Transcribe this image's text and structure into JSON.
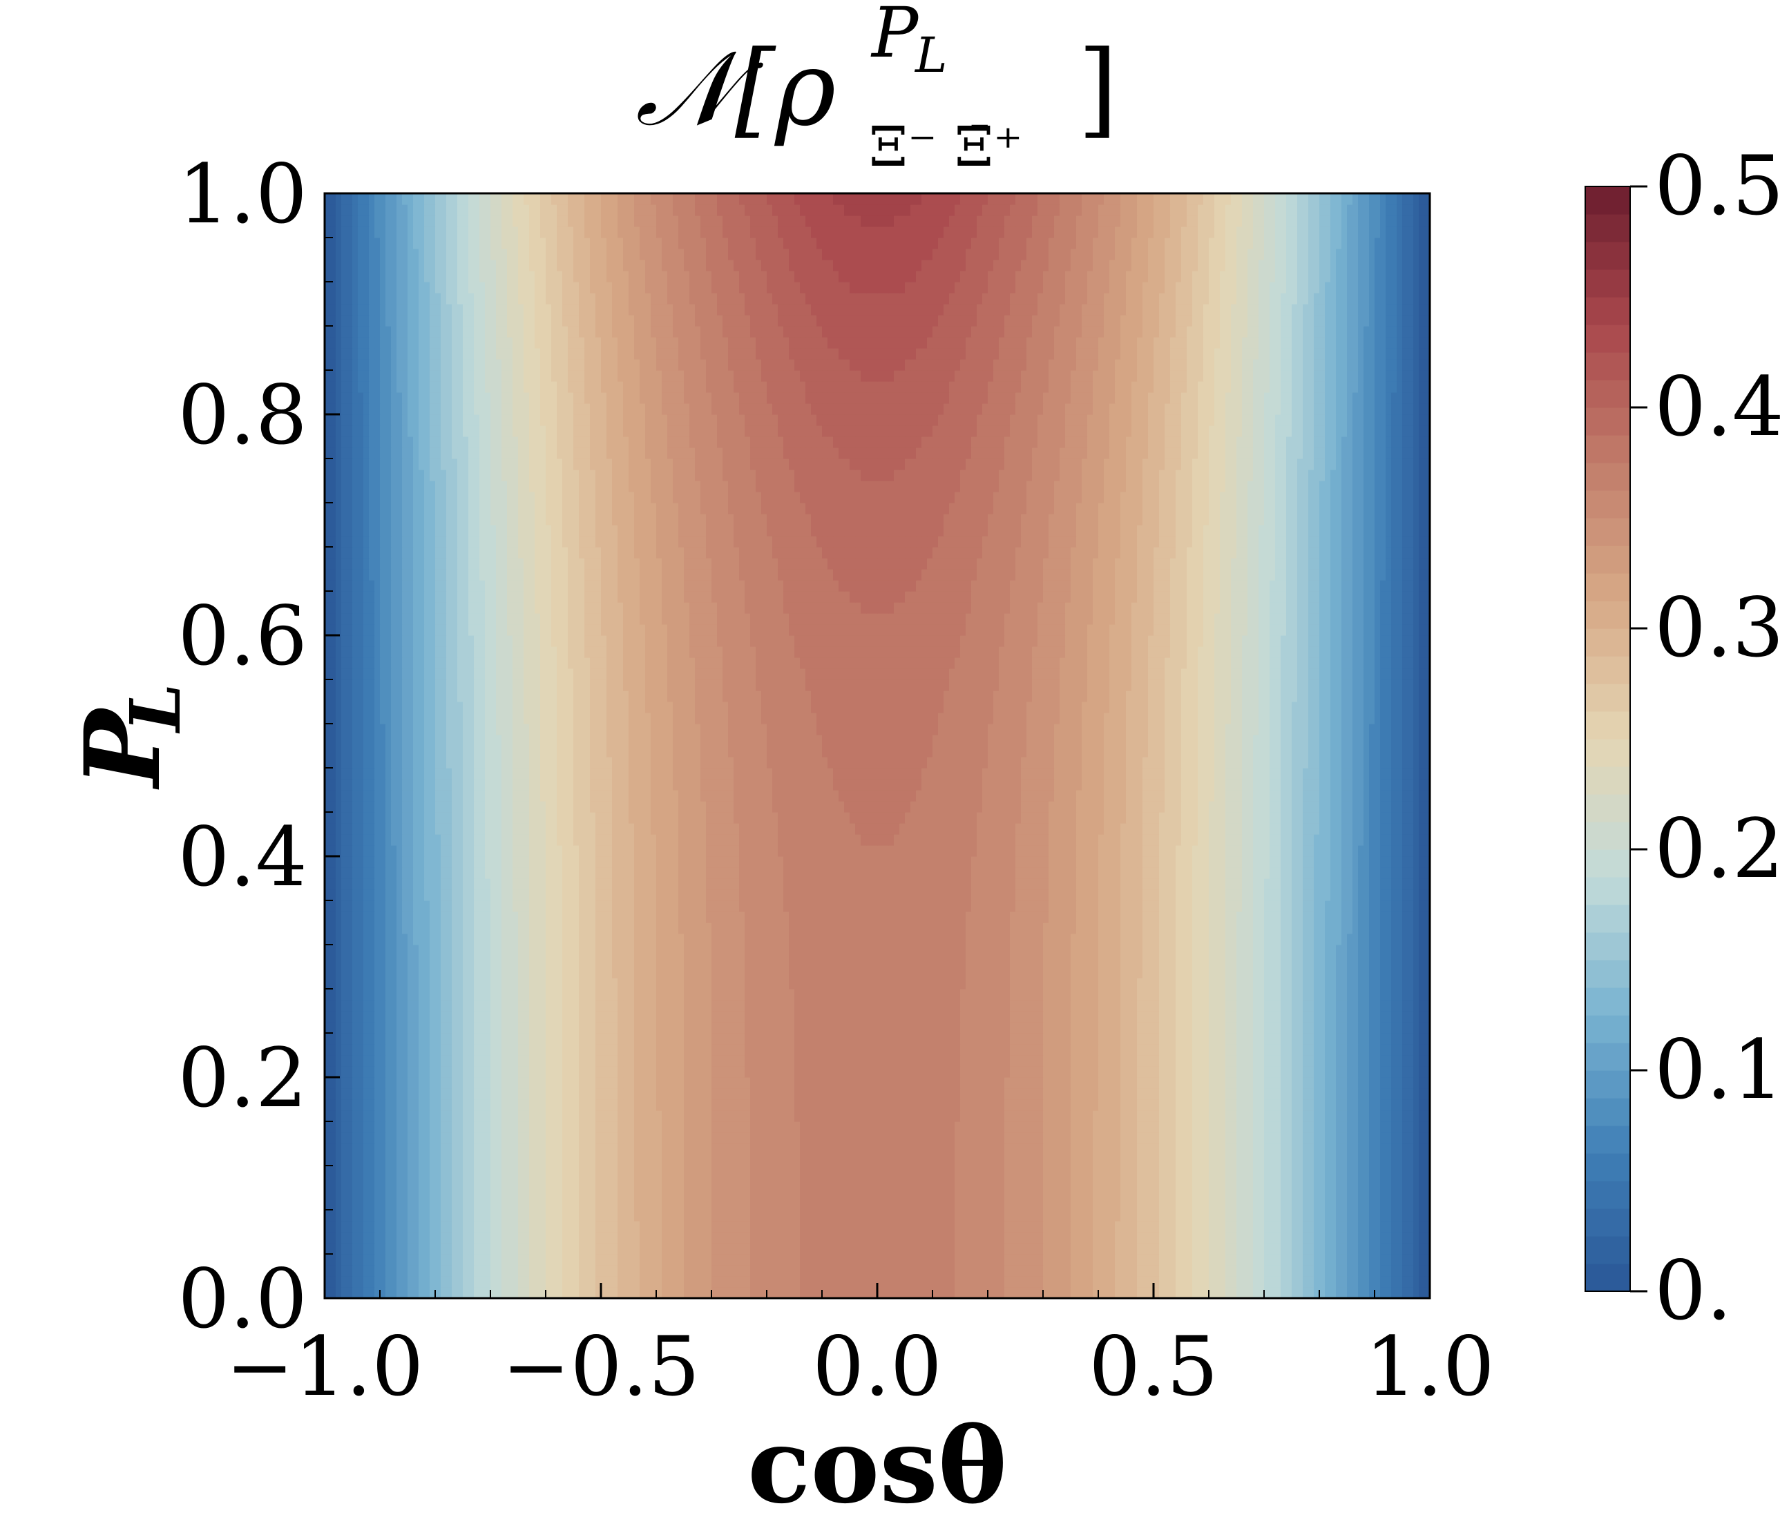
{
  "chart_data": {
    "type": "heatmap",
    "title": "𝒩[ρ^{P_L}_{Ξ⁻ Ξ̄⁺}]",
    "title_parts": {
      "main": "𝒩[ρ",
      "sup": "P",
      "sup_sub": "L",
      "sub": "Ξ⁻ Ξ̄⁺",
      "close": "]"
    },
    "xlabel": "cosθ",
    "ylabel_parts": {
      "main": "P",
      "sub": "L"
    },
    "xlim": [
      -1.0,
      1.0
    ],
    "ylim": [
      0.0,
      1.0
    ],
    "x_ticks": [
      -1.0,
      -0.5,
      0.0,
      0.5,
      1.0
    ],
    "x_tick_labels": [
      "−1.0",
      "−0.5",
      "0.0",
      "0.5",
      "1.0"
    ],
    "y_ticks": [
      0.0,
      0.2,
      0.4,
      0.6,
      0.8,
      1.0
    ],
    "y_tick_labels": [
      "0.0",
      "0.2",
      "0.4",
      "0.6",
      "0.8",
      "1.0"
    ],
    "colorbar": {
      "range": [
        0.0,
        0.5
      ],
      "ticks": [
        0.0,
        0.1,
        0.2,
        0.3,
        0.4,
        0.5
      ],
      "tick_labels": [
        "0.",
        "0.1",
        "0.2",
        "0.3",
        "0.4",
        "0.5"
      ],
      "colormap": [
        "#2a5797",
        "#3f7fb6",
        "#79b3d1",
        "#c2dbd9",
        "#e4d5b3",
        "#d7a987",
        "#c17c6a",
        "#a8474c",
        "#6b1d2e"
      ]
    },
    "contour_levels": 40,
    "grid": false,
    "values_description_points": [
      {
        "cos": 0.0,
        "P_L": 0.0,
        "value": 0.37
      },
      {
        "cos": 0.0,
        "P_L": 0.44,
        "value": 0.39
      },
      {
        "cos": 0.0,
        "P_L": 0.65,
        "value": 0.41
      },
      {
        "cos": 0.0,
        "P_L": 1.0,
        "value": 0.42
      },
      {
        "cos": 0.5,
        "P_L": 0.0,
        "value": 0.26
      },
      {
        "cos": 1.0,
        "P_L": 0.0,
        "value": 0.0
      }
    ]
  }
}
